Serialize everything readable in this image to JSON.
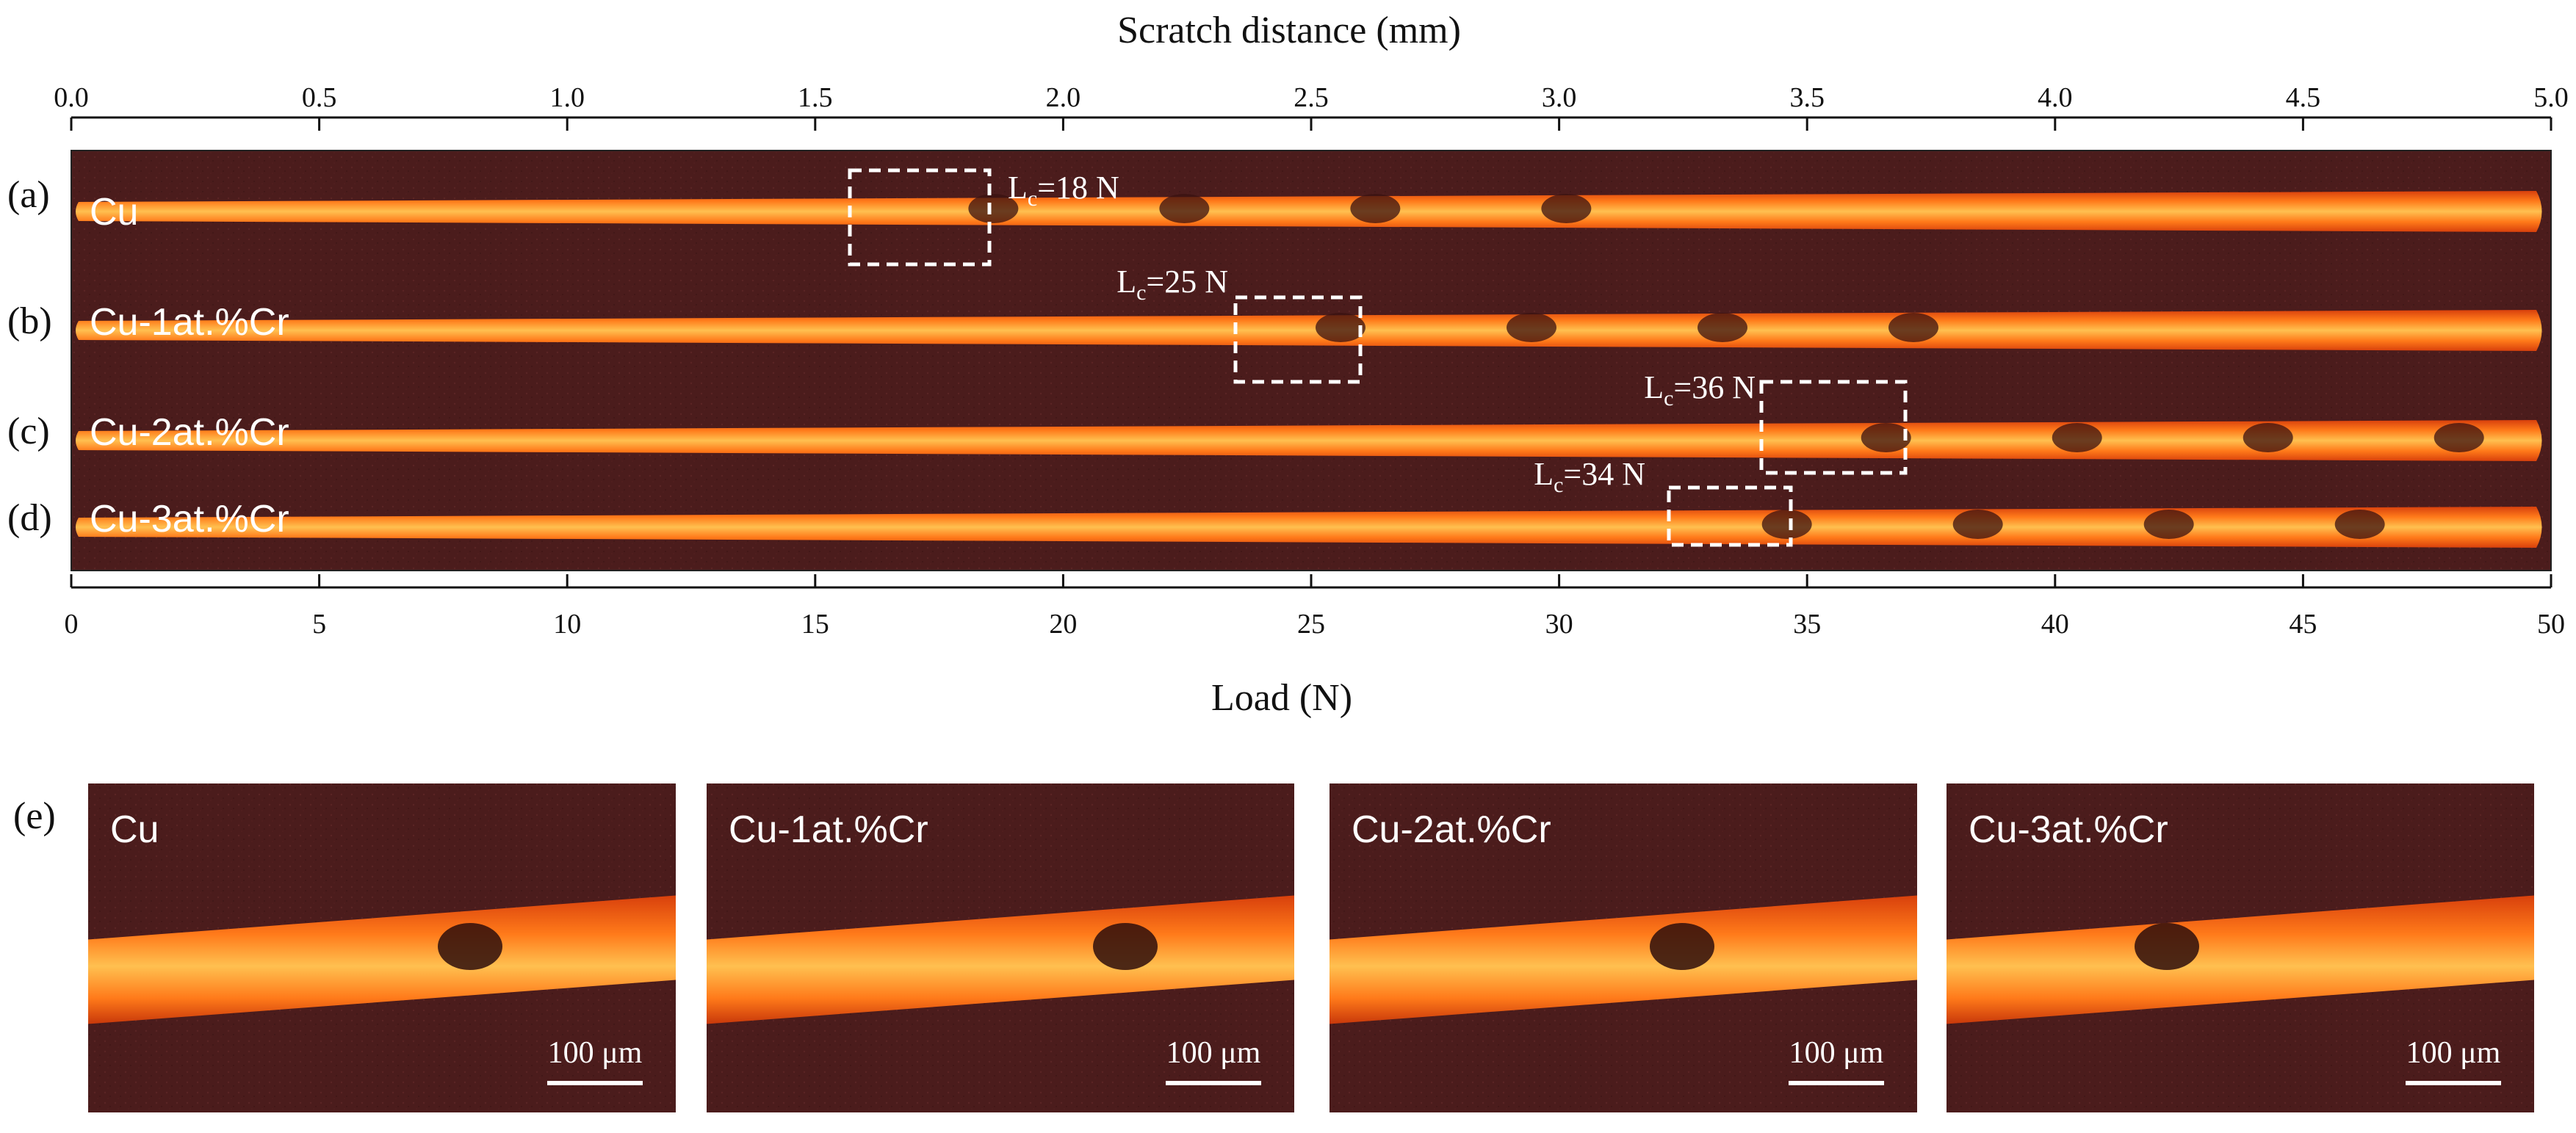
{
  "figure": {
    "top_axis": {
      "label": "Scratch distance (mm)",
      "min": 0.0,
      "max": 5.0,
      "ticks": [
        "0.0",
        "0.5",
        "1.0",
        "1.5",
        "2.0",
        "2.5",
        "3.0",
        "3.5",
        "4.0",
        "4.5",
        "5.0"
      ]
    },
    "bottom_axis": {
      "label": "Load (N)",
      "min": 0,
      "max": 50,
      "ticks": [
        "0",
        "5",
        "10",
        "15",
        "20",
        "25",
        "30",
        "35",
        "40",
        "45",
        "50"
      ]
    },
    "tracks": [
      {
        "panel": "(a)",
        "sample": "Cu",
        "critical_load_label": "L",
        "critical_load_sub": "c",
        "critical_load_value": "=18 N",
        "critical_load_N": 18
      },
      {
        "panel": "(b)",
        "sample": "Cu-1at.%Cr",
        "critical_load_label": "L",
        "critical_load_sub": "c",
        "critical_load_value": "=25 N",
        "critical_load_N": 25
      },
      {
        "panel": "(c)",
        "sample": "Cu-2at.%Cr",
        "critical_load_label": "L",
        "critical_load_sub": "c",
        "critical_load_value": "=36 N",
        "critical_load_N": 36
      },
      {
        "panel": "(d)",
        "sample": "Cu-3at.%Cr",
        "critical_load_label": "L",
        "critical_load_sub": "c",
        "critical_load_value": "=34 N",
        "critical_load_N": 34
      }
    ],
    "zoom_panel_label": "(e)",
    "zooms": [
      {
        "sample": "Cu",
        "scale_bar": "100 μm"
      },
      {
        "sample": "Cu-1at.%Cr",
        "scale_bar": "100 μm"
      },
      {
        "sample": "Cu-2at.%Cr",
        "scale_bar": "100 μm"
      },
      {
        "sample": "Cu-3at.%Cr",
        "scale_bar": "100 μm"
      }
    ],
    "colors": {
      "background": "#4a1a1a",
      "track_core": "#ffb347",
      "track_edge": "#ff5a10",
      "text_on_image": "#ffffff",
      "box": "#ffffff"
    }
  }
}
